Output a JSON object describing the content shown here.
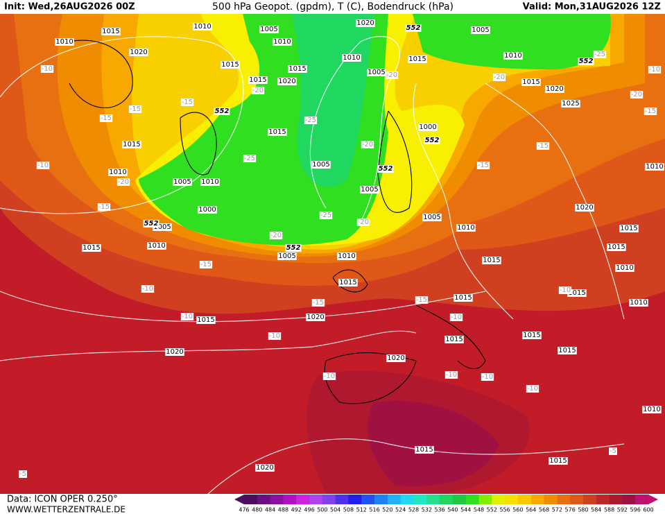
{
  "header": {
    "init": "Init: Wed,26AUG2026 00Z",
    "title": "500 hPa Geopot. (gpdm), T (C), Bodendruck (hPa)",
    "valid": "Valid: Mon,31AUG2026 12Z"
  },
  "footer": {
    "source": "Data: ICON OPER 0.250°",
    "site": "WWW.WETTERZENTRALE.DE"
  },
  "colorbar": {
    "ticks": [
      476,
      480,
      484,
      488,
      492,
      496,
      500,
      504,
      508,
      512,
      516,
      520,
      524,
      528,
      532,
      536,
      540,
      544,
      548,
      552,
      556,
      560,
      564,
      568,
      572,
      576,
      580,
      584,
      588,
      592,
      596,
      600
    ],
    "colors": [
      "#4b0f5e",
      "#6a1080",
      "#8c10a0",
      "#b010c0",
      "#d020e0",
      "#b040f0",
      "#8040f0",
      "#5030e8",
      "#2020e0",
      "#2050f0",
      "#2080f8",
      "#20b0f8",
      "#20d8f0",
      "#20e8c0",
      "#20e090",
      "#20d860",
      "#20c840",
      "#30e020",
      "#80f000",
      "#e0f000",
      "#f8e000",
      "#f8c800",
      "#f8a800",
      "#f08c00",
      "#e87010",
      "#e05818",
      "#d04020",
      "#c02828",
      "#b01830",
      "#a01040",
      "#c01070"
    ]
  },
  "map": {
    "pressure_labels": [
      1015,
      1010,
      1010,
      1005,
      1010,
      1020,
      1005,
      1010,
      1015,
      1020,
      1015,
      1015,
      1015,
      1020,
      1010,
      1005,
      1015,
      1020,
      1025,
      1015,
      1015,
      1000,
      1005,
      1010,
      1005,
      1010,
      1005,
      1000,
      1005,
      1005,
      1010,
      1020,
      1015,
      1015,
      1015,
      1010,
      1005,
      1010,
      1015,
      1010,
      1015,
      1015,
      1015,
      1010,
      1020,
      1015,
      1015,
      1015,
      1015,
      1020,
      1020,
      1015,
      1015,
      1020,
      1010,
      1010
    ],
    "height_labels": [
      552,
      552,
      552,
      552,
      552,
      552,
      552
    ],
    "temperature_labels": [
      -10,
      -15,
      -15,
      -15,
      -15,
      -20,
      -10,
      -25,
      -25,
      -25,
      -20,
      -20,
      -20,
      -20,
      -20,
      -20,
      -25,
      -15,
      -15,
      -15,
      -15,
      -15,
      -15,
      -10,
      -10,
      -10,
      -10,
      -10,
      -10,
      -10,
      -10,
      -10,
      -10,
      -5,
      -5,
      -20
    ]
  }
}
